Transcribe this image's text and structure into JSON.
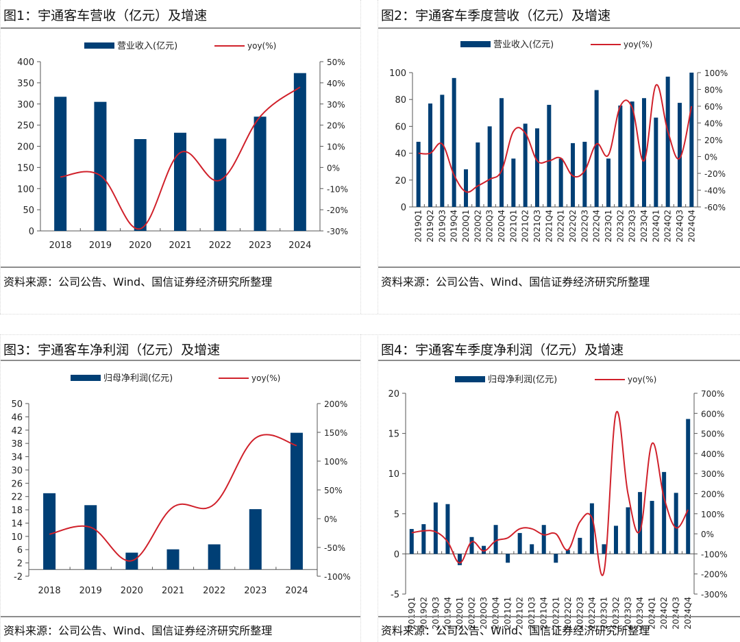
{
  "source_text": "资料来源：公司公告、Wind、国信证券经济研究所整理",
  "colors": {
    "bar": "#003f75",
    "line": "#d0202a",
    "axis": "#555555"
  },
  "chart_data": [
    {
      "id": "fig1",
      "type": "bar",
      "title": "图1：宇通客车营收（亿元）及增速",
      "legend": {
        "bar_label": "营业收入(亿元)",
        "line_label": "yoy(%)",
        "placement": "top-center"
      },
      "categories": [
        "2018",
        "2019",
        "2020",
        "2021",
        "2022",
        "2023",
        "2024"
      ],
      "series": [
        {
          "name": "营业收入(亿元)",
          "type": "bar",
          "axis": "left",
          "values": [
            317,
            305,
            217,
            232,
            218,
            270,
            373
          ]
        },
        {
          "name": "yoy(%)",
          "type": "line",
          "axis": "right",
          "values": [
            -4.5,
            -3.8,
            -29,
            7,
            -6,
            24,
            38
          ]
        }
      ],
      "left_axis": {
        "min": 0,
        "max": 400,
        "ticks": [
          0,
          50,
          100,
          150,
          200,
          250,
          300,
          350,
          400
        ],
        "tick_labels": [
          "0",
          "50",
          "100",
          "150",
          "200",
          "250",
          "300",
          "350",
          "400"
        ]
      },
      "right_axis": {
        "min": -30,
        "max": 50,
        "ticks": [
          -30,
          -20,
          -10,
          0,
          10,
          20,
          30,
          40,
          50
        ],
        "tick_labels": [
          "-30%",
          "-20%",
          "-10%",
          "0%",
          "10%",
          "20%",
          "30%",
          "40%",
          "50%"
        ]
      },
      "x_rotated": false,
      "grid": false
    },
    {
      "id": "fig2",
      "type": "bar",
      "title": "图2：宇通客车季度营收（亿元）及增速",
      "legend": {
        "bar_label": "营业收入(亿元)",
        "line_label": "yoy(%)",
        "placement": "top-center"
      },
      "categories": [
        "2019Q1",
        "2019Q2",
        "2019Q3",
        "2019Q4",
        "2020Q1",
        "2020Q2",
        "2020Q3",
        "2020Q4",
        "2021Q1",
        "2021Q2",
        "2021Q3",
        "2021Q4",
        "2022Q1",
        "2022Q2",
        "2022Q3",
        "2022Q4",
        "2023Q1",
        "2023Q2",
        "2023Q3",
        "2023Q4",
        "2024Q1",
        "2024Q2",
        "2024Q3",
        "2024Q4"
      ],
      "series": [
        {
          "name": "营业收入(亿元)",
          "type": "bar",
          "axis": "left",
          "values": [
            48.5,
            77,
            83.5,
            96,
            28,
            48,
            60,
            81,
            36,
            62,
            58.5,
            76,
            36,
            47.5,
            48.5,
            87,
            36,
            75.5,
            78.5,
            81,
            66.5,
            97,
            77.5,
            100
          ]
        },
        {
          "name": "yoy(%)",
          "type": "line",
          "axis": "right",
          "values": [
            4,
            4,
            15,
            -22,
            -42,
            -35,
            -27,
            -17,
            30,
            28,
            -5,
            -5,
            -2,
            -23,
            -17,
            15,
            2,
            60,
            58,
            -5,
            85,
            30,
            -2,
            60
          ]
        }
      ],
      "left_axis": {
        "min": 0,
        "max": 100,
        "ticks": [
          0,
          20,
          40,
          60,
          80,
          100
        ],
        "tick_labels": [
          "0",
          "20",
          "40",
          "60",
          "80",
          "100"
        ]
      },
      "right_axis": {
        "min": -60,
        "max": 100,
        "ticks": [
          -60,
          -40,
          -20,
          0,
          20,
          40,
          60,
          80,
          100
        ],
        "tick_labels": [
          "-60%",
          "-40%",
          "-20%",
          "0%",
          "20%",
          "40%",
          "60%",
          "80%",
          "100%"
        ]
      },
      "x_rotated": true,
      "grid": false
    },
    {
      "id": "fig3",
      "type": "bar",
      "title": "图3：宇通客车净利润（亿元）及增速",
      "legend": {
        "bar_label": "归母净利润(亿元)",
        "line_label": "yoy(%)",
        "placement": "top-center"
      },
      "categories": [
        "2018",
        "2019",
        "2020",
        "2021",
        "2022",
        "2023",
        "2024"
      ],
      "series": [
        {
          "name": "归母净利润(亿元)",
          "type": "bar",
          "axis": "left",
          "values": [
            23.0,
            19.4,
            5.1,
            6.1,
            7.6,
            18.2,
            41.2
          ]
        },
        {
          "name": "yoy(%)",
          "type": "line",
          "axis": "right",
          "values": [
            -27,
            -15,
            -73,
            20,
            25,
            140,
            127
          ]
        }
      ],
      "left_axis": {
        "min": -2,
        "max": 50,
        "ticks": [
          -2,
          2,
          6,
          10,
          14,
          18,
          22,
          26,
          30,
          34,
          38,
          42,
          46,
          50
        ],
        "tick_labels": [
          "-2",
          "2",
          "6",
          "10",
          "14",
          "18",
          "22",
          "26",
          "30",
          "34",
          "38",
          "42",
          "46",
          "50"
        ]
      },
      "right_axis": {
        "min": -100,
        "max": 200,
        "ticks": [
          -100,
          -50,
          0,
          50,
          100,
          150,
          200
        ],
        "tick_labels": [
          "-100%",
          "-50%",
          "0%",
          "50%",
          "100%",
          "150%",
          "200%"
        ]
      },
      "x_rotated": false,
      "grid": false
    },
    {
      "id": "fig4",
      "type": "bar",
      "title": "图4：宇通客车季度净利润（亿元）及增速",
      "legend": {
        "bar_label": "归母净利润(亿元)",
        "line_label": "yoy(%)",
        "placement": "top-center"
      },
      "categories": [
        "2019Q1",
        "2019Q2",
        "2019Q3",
        "2019Q4",
        "2020Q1",
        "2020Q2",
        "2020Q3",
        "2020Q4",
        "2021Q1",
        "2021Q2",
        "2021Q3",
        "2021Q4",
        "2022Q1",
        "2022Q2",
        "2022Q3",
        "2022Q4",
        "2023Q1",
        "2023Q2",
        "2023Q3",
        "2023Q4",
        "2024Q1",
        "2024Q2",
        "2024Q3",
        "2024Q4"
      ],
      "series": [
        {
          "name": "归母净利润(亿元)",
          "type": "bar",
          "axis": "left",
          "values": [
            3.1,
            3.7,
            6.4,
            6.2,
            -1.4,
            2.1,
            1.0,
            3.6,
            -1.1,
            2.6,
            1.2,
            3.6,
            -1.1,
            0.5,
            2.0,
            6.3,
            1.2,
            3.5,
            5.8,
            7.7,
            6.6,
            10.2,
            7.6,
            16.8
          ]
        },
        {
          "name": "yoy(%)",
          "type": "line",
          "axis": "right",
          "values": [
            5,
            15,
            10,
            -40,
            -145,
            -40,
            -85,
            -35,
            -20,
            25,
            25,
            -5,
            0,
            -80,
            60,
            80,
            -190,
            600,
            200,
            15,
            450,
            180,
            30,
            120
          ]
        }
      ],
      "left_axis": {
        "min": -5,
        "max": 20,
        "ticks": [
          -5,
          0,
          5,
          10,
          15,
          20
        ],
        "tick_labels": [
          "-5",
          "0",
          "5",
          "10",
          "15",
          "20"
        ]
      },
      "right_axis": {
        "min": -300,
        "max": 700,
        "ticks": [
          -300,
          -200,
          -100,
          0,
          100,
          200,
          300,
          400,
          500,
          600,
          700
        ],
        "tick_labels": [
          "-300%",
          "-200%",
          "-100%",
          "0%",
          "100%",
          "200%",
          "300%",
          "400%",
          "500%",
          "600%",
          "700%"
        ]
      },
      "x_rotated": true,
      "grid": false
    }
  ]
}
